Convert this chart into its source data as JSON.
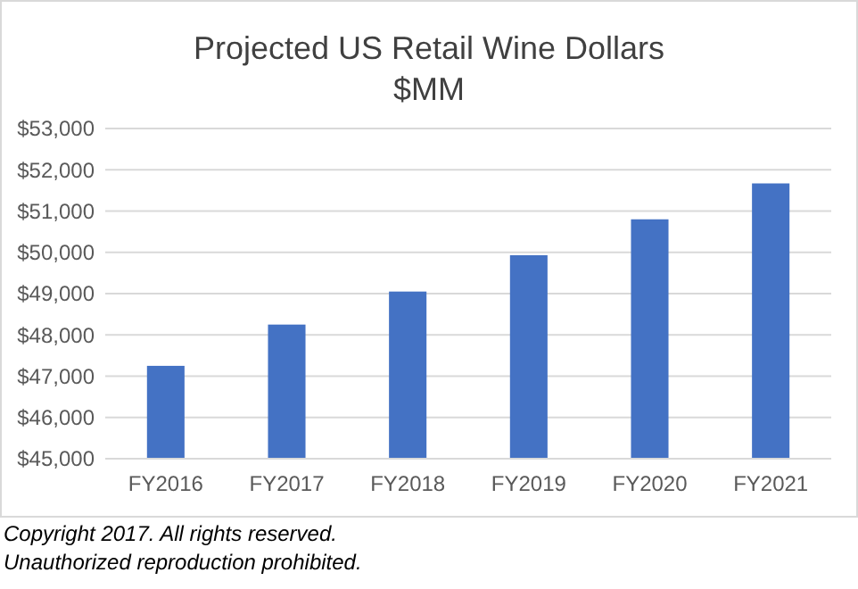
{
  "chart_data": {
    "type": "bar",
    "title": "Projected US Retail Wine Dollars",
    "subtitle": "$MM",
    "categories": [
      "FY2016",
      "FY2017",
      "FY2018",
      "FY2019",
      "FY2020",
      "FY2021"
    ],
    "values": [
      47250,
      48250,
      49050,
      49930,
      50800,
      51670
    ],
    "color": "#4472c4",
    "ylim": [
      45000,
      53000
    ],
    "yticks": [
      {
        "value": 45000,
        "label": "$45,000"
      },
      {
        "value": 46000,
        "label": "$46,000"
      },
      {
        "value": 47000,
        "label": "$47,000"
      },
      {
        "value": 48000,
        "label": "$48,000"
      },
      {
        "value": 49000,
        "label": "$49,000"
      },
      {
        "value": 50000,
        "label": "$50,000"
      },
      {
        "value": 51000,
        "label": "$51,000"
      },
      {
        "value": 52000,
        "label": "$52,000"
      },
      {
        "value": 53000,
        "label": "$53,000"
      }
    ],
    "grid": "y",
    "annotations": [
      "Copyright 2017.  All rights reserved.",
      "Unauthorized reproduction prohibited."
    ]
  }
}
